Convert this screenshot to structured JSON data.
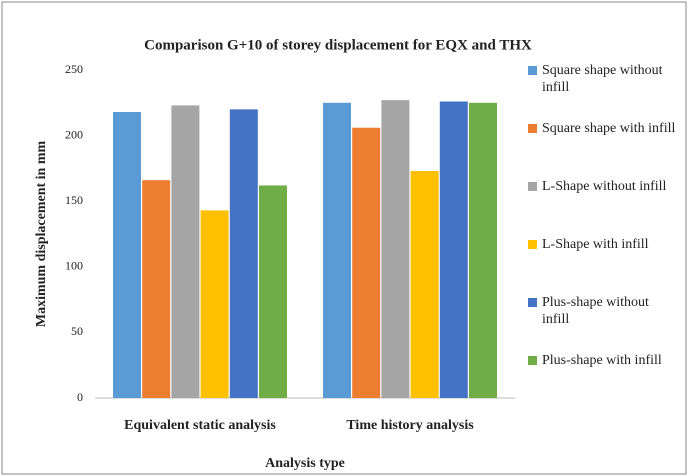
{
  "chart_data": {
    "type": "bar",
    "title": "Comparison G+10 of storey displacement for EQX and THX",
    "x_label": "Analysis type",
    "y_label": "Maximum displacement in mm",
    "categories": [
      "Equivalent static analysis",
      "Time history analysis"
    ],
    "series": [
      {
        "name": "Square shape without infill",
        "color": "#5b9bd5",
        "values": [
          218,
          225
        ]
      },
      {
        "name": "Square shape with infill",
        "color": "#ed7d31",
        "values": [
          166,
          206
        ]
      },
      {
        "name": "L-Shape without infill",
        "color": "#a5a5a5",
        "values": [
          223,
          227
        ]
      },
      {
        "name": "L-Shape with infill",
        "color": "#ffc000",
        "values": [
          143,
          173
        ]
      },
      {
        "name": "Plus-shape without infill",
        "color": "#4472c4",
        "values": [
          220,
          226
        ]
      },
      {
        "name": "Plus-shape with infill",
        "color": "#70ad47",
        "values": [
          162,
          225
        ]
      }
    ],
    "ylim": [
      0,
      250
    ],
    "yticks": [
      0,
      50,
      100,
      150,
      200,
      250
    ],
    "grid": false
  }
}
